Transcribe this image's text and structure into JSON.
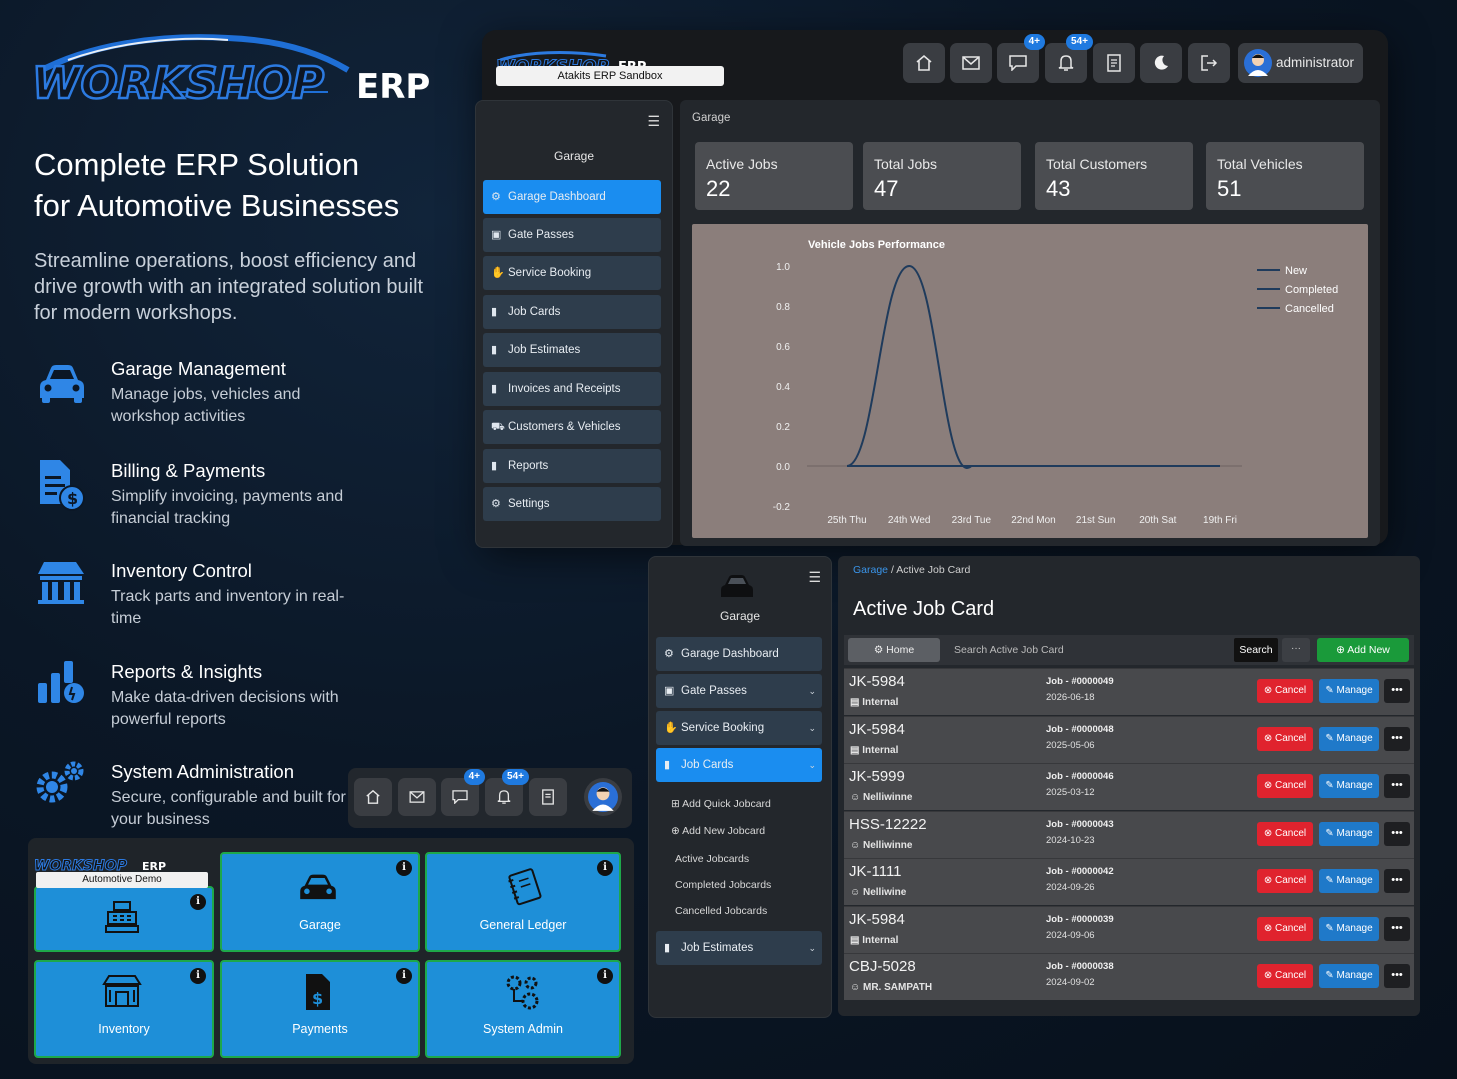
{
  "brand": {
    "logo_word": "WORKSHOP",
    "logo_suffix": "ERP"
  },
  "hero": {
    "headline_line1": "Complete ERP Solution",
    "headline_line2": "for Automotive Businesses",
    "subline": "Streamline operations, boost efficiency and drive growth with an integrated solution built for modern workshops."
  },
  "features": [
    {
      "title": "Garage Management",
      "desc": "Manage jobs, vehicles and workshop activities",
      "icon": "car-icon"
    },
    {
      "title": "Billing & Payments",
      "desc": "Simplify invoicing, payments and financial tracking",
      "icon": "invoice-dollar-icon"
    },
    {
      "title": "Inventory Control",
      "desc": "Track parts and inventory in real-time",
      "icon": "warehouse-icon"
    },
    {
      "title": "Reports & Insights",
      "desc": "Make data-driven decisions with powerful reports",
      "icon": "bar-chart-icon"
    },
    {
      "title": "System Administration",
      "desc": "Secure, configurable and built for your business",
      "icon": "gears-icon"
    }
  ],
  "topbar": {
    "sandbox_label": "Atakits ERP Sandbox",
    "chat_badge": "4+",
    "bell_badge": "54+",
    "user_name": "administrator"
  },
  "sidebar1": {
    "title": "Garage",
    "items": [
      {
        "label": "Garage Dashboard",
        "icon": "dashboard-icon",
        "active": true
      },
      {
        "label": "Gate Passes",
        "icon": "id-card-icon"
      },
      {
        "label": "Service Booking",
        "icon": "handshake-icon"
      },
      {
        "label": "Job Cards",
        "icon": "file-icon"
      },
      {
        "label": "Job Estimates",
        "icon": "file-icon"
      },
      {
        "label": "Invoices and Receipts",
        "icon": "file-icon"
      },
      {
        "label": "Customers & Vehicles",
        "icon": "car-icon"
      },
      {
        "label": "Reports",
        "icon": "file-icon"
      },
      {
        "label": "Settings",
        "icon": "gears-icon"
      }
    ]
  },
  "dashboard": {
    "breadcrumb": "Garage",
    "stats": [
      {
        "label": "Active Jobs",
        "value": "22"
      },
      {
        "label": "Total Jobs",
        "value": "47"
      },
      {
        "label": "Total Customers",
        "value": "43"
      },
      {
        "label": "Total Vehicles",
        "value": "51"
      }
    ]
  },
  "chart_data": {
    "type": "line",
    "title": "Vehicle Jobs Performance",
    "categories": [
      "25th Thu",
      "24th Wed",
      "23rd Tue",
      "22nd Mon",
      "21st Sun",
      "20th Sat",
      "19th Fri"
    ],
    "series": [
      {
        "name": "New",
        "values": [
          0,
          1,
          0,
          0,
          0,
          0,
          0
        ],
        "color": "#1f3b5c"
      },
      {
        "name": "Completed",
        "values": [
          0,
          0,
          0,
          0,
          0,
          0,
          0
        ],
        "color": "#1f3b5c"
      },
      {
        "name": "Cancelled",
        "values": [
          0,
          0,
          0,
          0,
          0,
          0,
          0
        ],
        "color": "#1f3b5c"
      }
    ],
    "ylim": [
      -0.2,
      1.0
    ],
    "yticks": [
      "1.0",
      "0.8",
      "0.6",
      "0.4",
      "0.2",
      "0.0",
      "-0.2"
    ],
    "legend_position": "top-right",
    "grid": false
  },
  "sidebar2": {
    "title": "Garage",
    "items": [
      {
        "label": "Garage Dashboard",
        "icon": "dashboard-icon"
      },
      {
        "label": "Gate Passes",
        "icon": "id-card-icon"
      },
      {
        "label": "Service Booking",
        "icon": "handshake-icon"
      },
      {
        "label": "Job Cards",
        "icon": "file-icon",
        "active": true
      },
      {
        "label": "Job Estimates",
        "icon": "file-icon"
      }
    ],
    "subitems": [
      "Add Quick Jobcard",
      "Add New Jobcard",
      "Active Jobcards",
      "Completed Jobcards",
      "Cancelled Jobcards"
    ]
  },
  "jobcards": {
    "breadcrumb_root": "Garage",
    "breadcrumb_sep": "/",
    "breadcrumb_current": "Active Job Card",
    "title": "Active Job Card",
    "home_label": "Home",
    "search_placeholder": "Search Active Job Card",
    "search_label": "Search",
    "more_label": "···",
    "add_label": "Add New",
    "cancel_label": "Cancel",
    "manage_label": "Manage",
    "rows": [
      {
        "id": "JK-5984",
        "owner": "Internal",
        "owner_icon": "building-icon",
        "job": "Job - #0000049",
        "date": "2026-06-18"
      },
      {
        "id": "JK-5984",
        "owner": "Internal",
        "owner_icon": "building-icon",
        "job": "Job - #0000048",
        "date": "2025-05-06"
      },
      {
        "id": "JK-5999",
        "owner": "Nelliwinne",
        "owner_icon": "user-icon",
        "job": "Job - #0000046",
        "date": "2025-03-12"
      },
      {
        "id": "HSS-12222",
        "owner": "Nelliwinne",
        "owner_icon": "user-icon",
        "job": "Job - #0000043",
        "date": "2024-10-23"
      },
      {
        "id": "JK-1111",
        "owner": "Nelliwine",
        "owner_icon": "user-icon",
        "job": "Job - #0000042",
        "date": "2024-09-26"
      },
      {
        "id": "JK-5984",
        "owner": "Internal",
        "owner_icon": "building-icon",
        "job": "Job - #0000039",
        "date": "2024-09-06"
      },
      {
        "id": "CBJ-5028",
        "owner": "MR. SAMPATH",
        "owner_icon": "user-icon",
        "job": "Job - #0000038",
        "date": "2024-09-02"
      }
    ]
  },
  "mini_toolbar": {
    "chat_badge": "4+",
    "bell_badge": "54+"
  },
  "modules": {
    "demo_label": "Automotive Demo",
    "tiles": [
      {
        "label": "",
        "icon": "cash-register-icon"
      },
      {
        "label": "Garage",
        "icon": "car-icon"
      },
      {
        "label": "General Ledger",
        "icon": "ledger-book-icon"
      },
      {
        "label": "Inventory",
        "icon": "warehouse-icon"
      },
      {
        "label": "Payments",
        "icon": "invoice-dollar-icon"
      },
      {
        "label": "System Admin",
        "icon": "gears-icon"
      }
    ],
    "info_glyph": "i"
  },
  "colors": {
    "accent_blue": "#1a8df0",
    "tile_blue": "#1e8fd8",
    "tile_border_green": "#1ea84a",
    "cancel_red": "#e0232e",
    "manage_blue": "#1f79c9",
    "add_green": "#1a9a3a",
    "chart_bg": "#8b7e7b"
  }
}
